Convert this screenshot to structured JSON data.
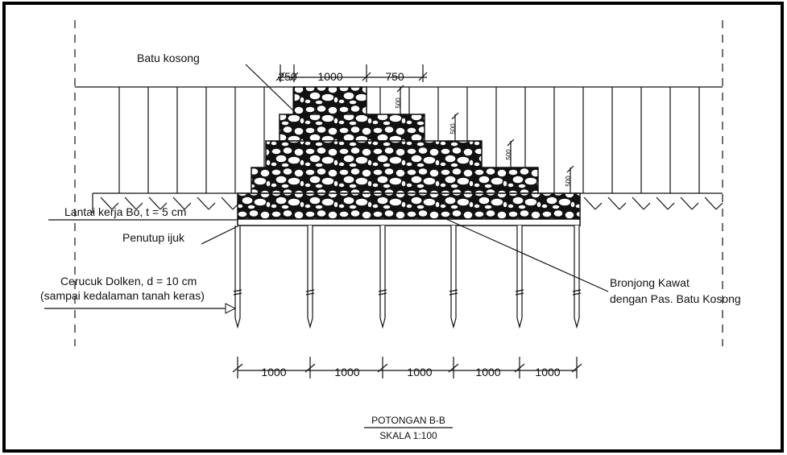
{
  "labels": {
    "stone": "Batu kosong",
    "work_floor": "Lantai kerja Bo, t = 5 cm",
    "cover": "Penutup ijuk",
    "piles": [
      "Cerucuk Dolken, d = 10 cm",
      "(sampai kedalaman tanah keras)"
    ],
    "gabion": [
      "Bronjong Kawat",
      "dengan Pas. Batu Kosong"
    ]
  },
  "top_dimensions": [
    "250",
    "1000",
    "750"
  ],
  "step_heights": [
    "500",
    "500",
    "500",
    "500"
  ],
  "pile_spacing": [
    "1000",
    "1000",
    "1000",
    "1000",
    "1000"
  ],
  "caption": {
    "title": "POTONGAN B-B",
    "scale": "SKALA 1:100"
  }
}
